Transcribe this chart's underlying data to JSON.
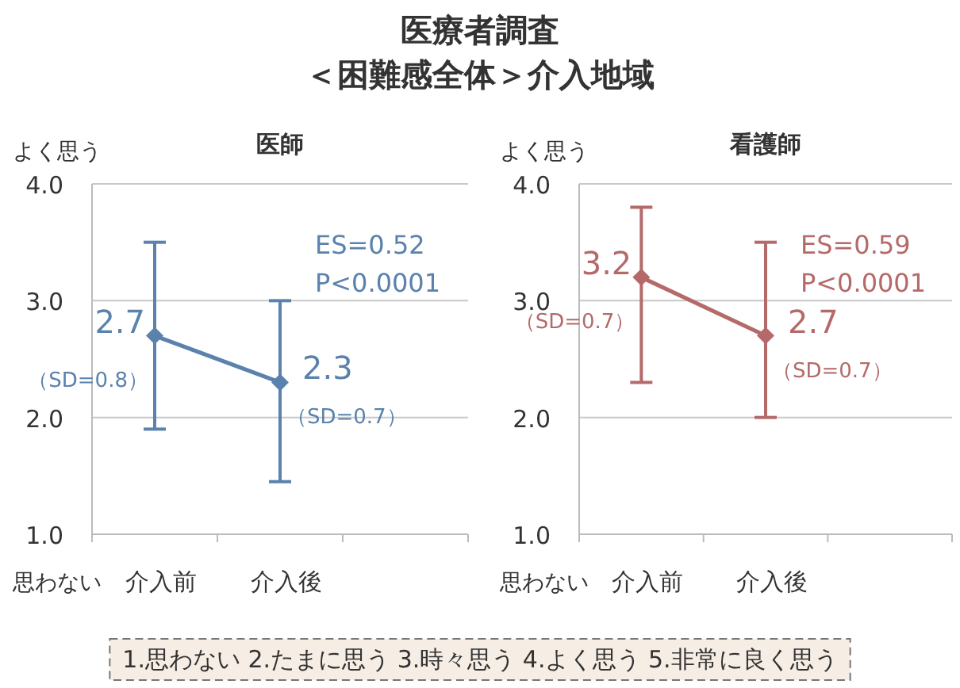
{
  "chart_data": [
    {
      "type": "other",
      "title": "医療者調査",
      "subtitle": "＜困難感全体＞介入地域"
    },
    {
      "type": "line",
      "title": "医師",
      "categories": [
        "介入前",
        "介入後",
        null
      ],
      "ylabel": "よく思う",
      "annotations": [
        "思わない",
        "ES=0.52",
        "P<0.0001",
        {
          "text": "（SD=0.8）",
          "x": "介入前",
          "y": 2.7
        },
        {
          "text": "（SD=0.7）",
          "x": "介入後",
          "y": 2.3
        }
      ],
      "series": [
        {
          "color": "#5a82ad",
          "values": [
            2.7,
            2.3,
            null
          ],
          "errors": [
            [
              1.9,
              3.5
            ],
            [
              1.45,
              3.0
            ],
            null
          ]
        }
      ],
      "ylim": [
        1,
        4
      ],
      "yticks": [
        {
          "value": 1,
          "label": "1.0"
        },
        {
          "value": 2,
          "label": "2.0"
        },
        {
          "value": 3,
          "label": "3.0"
        },
        {
          "value": 4,
          "label": "4.0"
        }
      ],
      "grid": "y",
      "marker": "diamond",
      "line_style": "solid",
      "data_labels": true
    },
    {
      "type": "line",
      "title": "看護師",
      "categories": [
        "介入前",
        "介入後",
        null
      ],
      "ylabel": "よく思う",
      "annotations": [
        "思わない",
        "ES=0.59",
        "P<0.0001",
        {
          "text": "（SD=0.7）",
          "x": "介入前",
          "y": 3.2
        },
        {
          "text": "（SD=0.7）",
          "x": "介入後",
          "y": 2.7
        }
      ],
      "series": [
        {
          "color": "#b56a6a",
          "values": [
            3.2,
            2.7,
            null
          ],
          "errors": [
            [
              2.3,
              3.8
            ],
            [
              2.0,
              3.5
            ],
            null
          ]
        }
      ],
      "ylim": [
        1,
        4
      ],
      "yticks": [
        {
          "value": 1,
          "label": "1.0"
        },
        {
          "value": 2,
          "label": "2.0"
        },
        {
          "value": 3,
          "label": "3.0"
        },
        {
          "value": 4,
          "label": "4.0"
        }
      ],
      "grid": "y",
      "marker": "diamond",
      "line_style": "solid",
      "data_labels": true
    },
    {
      "type": "other",
      "annotations": [
        "1.思わない 2.たまに思う 3.時々思う 4.よく思う 5.非常に良く思う"
      ]
    }
  ]
}
